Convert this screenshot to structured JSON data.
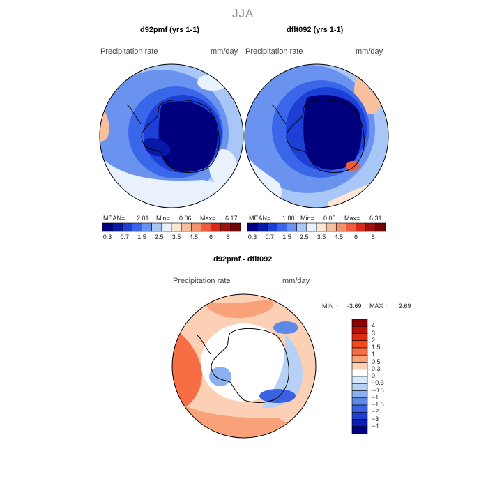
{
  "chart_data": [
    {
      "type": "heatmap",
      "title": "d92pmf (yrs 1-1)",
      "variable": "Precipitation rate",
      "units": "mm/day",
      "stats": {
        "mean_label": "MEAN=",
        "mean": "2.01",
        "min_label": "Min=",
        "min": "0.06",
        "max_label": "Max=",
        "max": "6.17"
      },
      "colorbar_levels": [
        "0.3",
        "0.7",
        "1.5",
        "2.5",
        "3.5",
        "4.5",
        "6",
        "8"
      ]
    },
    {
      "type": "heatmap",
      "title": "dflt092 (yrs 1-1)",
      "variable": "Precipitation rate",
      "units": "mm/day",
      "stats": {
        "mean_label": "MEAN=",
        "mean": "1.80",
        "min_label": "Min=",
        "min": "0.05",
        "max_label": "Max=",
        "max": "6.31"
      },
      "colorbar_levels": [
        "0.3",
        "0.7",
        "1.5",
        "2.5",
        "3.5",
        "4.5",
        "6",
        "8"
      ]
    },
    {
      "type": "heatmap",
      "title": "d92pmf - dflt092",
      "variable": "Precipitation rate",
      "units": "mm/day",
      "stats": {
        "min_label": "MIN =",
        "min": "-3.69",
        "max_label": "MAX =",
        "max": "2.69"
      },
      "colorbar_levels": [
        "4",
        "3",
        "2",
        "1.5",
        "1",
        "0.5",
        "0.3",
        "0",
        "−0.3",
        "−0.5",
        "−1",
        "−1.5",
        "−2",
        "−3",
        "−4"
      ]
    }
  ],
  "season": "JJA",
  "colors": {
    "seq": [
      "#00007f",
      "#0818a8",
      "#1c3fd6",
      "#3a66ea",
      "#6a93f0",
      "#a8c6f6",
      "#e8f1fc",
      "#fde6d4",
      "#f9c0a0",
      "#f5926c",
      "#ee5e3e",
      "#d92a18",
      "#a0100e",
      "#6e0606"
    ],
    "div_pos": [
      "#8b0000",
      "#b51208",
      "#dc2b10",
      "#f24a1e",
      "#f76e45",
      "#f9a27a",
      "#fcd0b4"
    ],
    "div_zero": "#ffffff",
    "div_neg": [
      "#d9e8fb",
      "#b6d0f6",
      "#8ab0ef",
      "#5e89e8",
      "#3a61df",
      "#1e3fcf",
      "#0c1fb4",
      "#000080"
    ]
  }
}
